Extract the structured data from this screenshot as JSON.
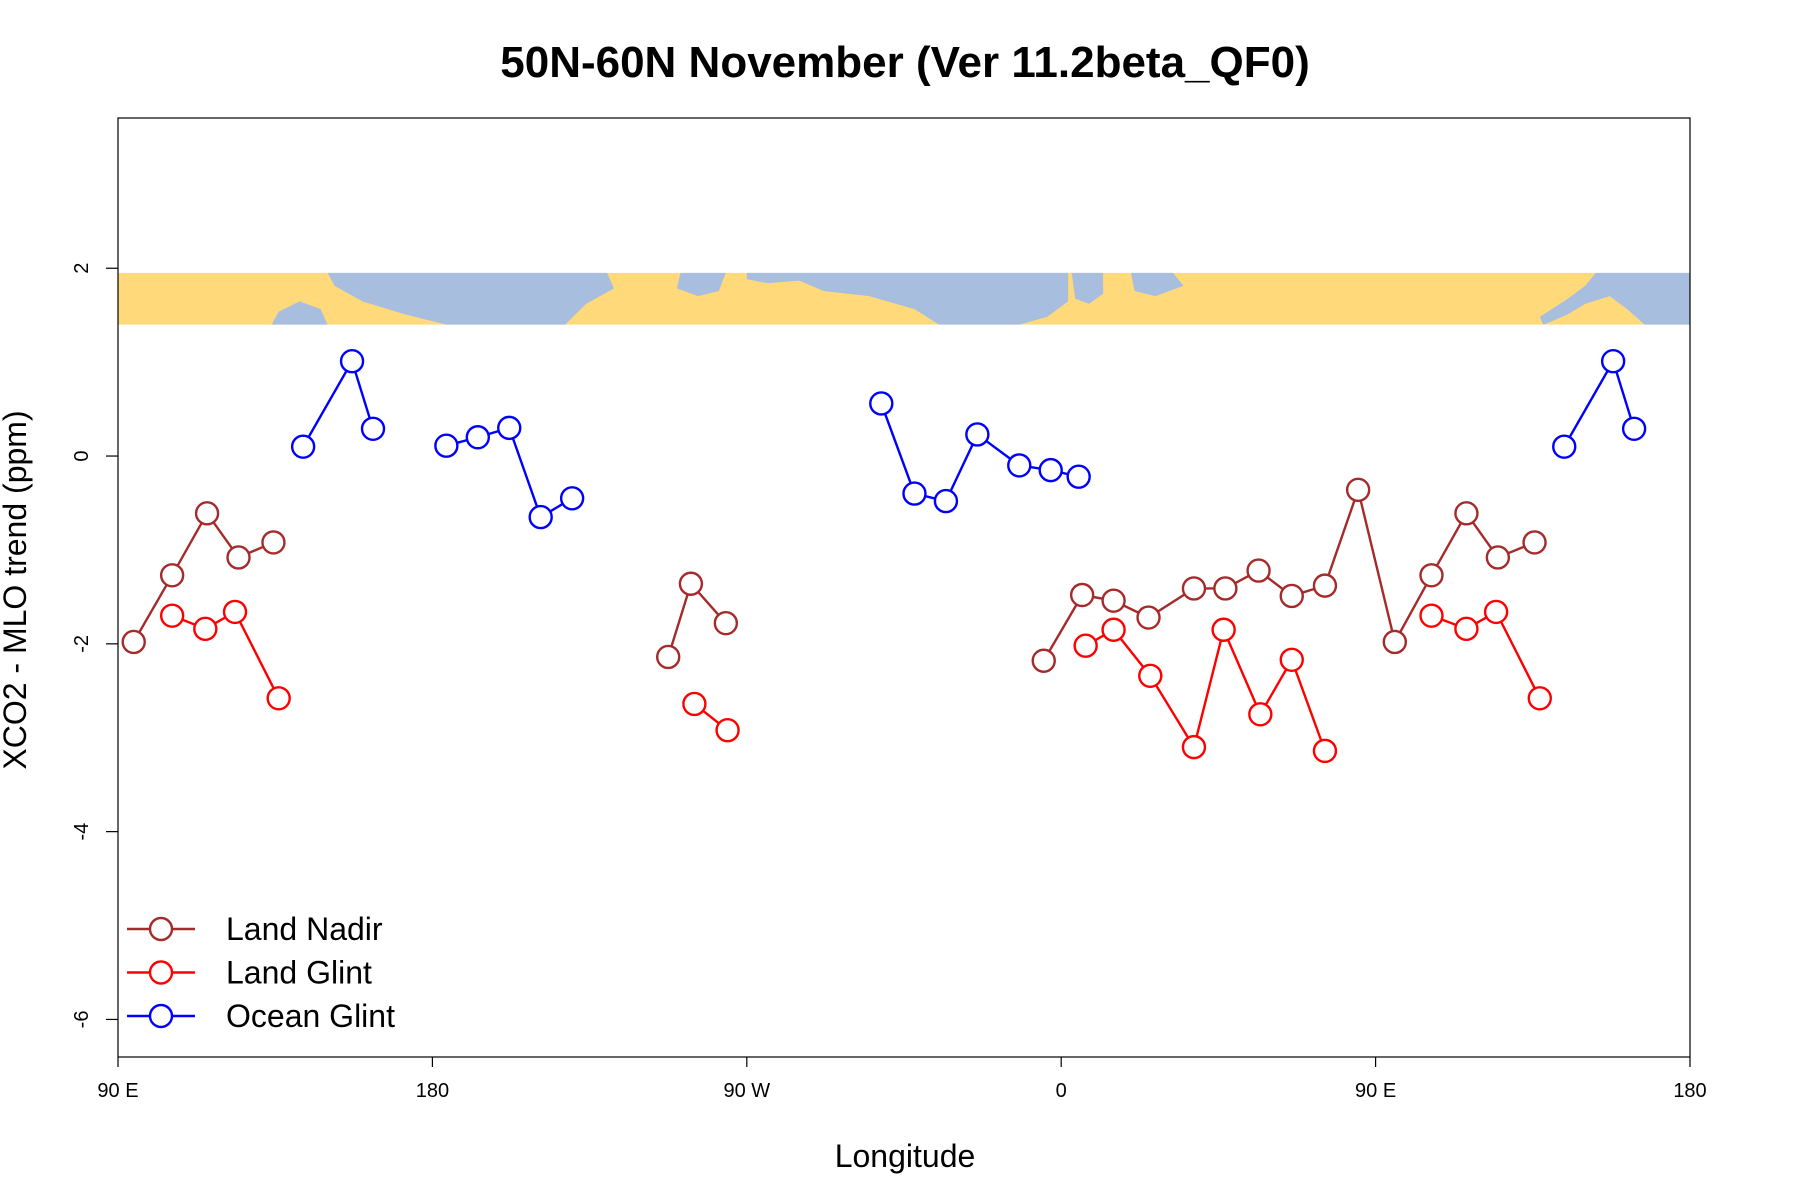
{
  "chart_data": {
    "type": "line",
    "title": "50N-60N November (Ver 11.2beta_QF0)",
    "xlabel": "Longitude",
    "ylabel": "XCO2 - MLO trend (ppm)",
    "xaxis": {
      "range_deg": [
        90,
        540
      ],
      "ticks": [
        {
          "value": 90,
          "label": "90 E"
        },
        {
          "value": 180,
          "label": "180"
        },
        {
          "value": 270,
          "label": "90 W"
        },
        {
          "value": 360,
          "label": "0"
        },
        {
          "value": 450,
          "label": "90 E"
        },
        {
          "value": 540,
          "label": "180"
        }
      ]
    },
    "yaxis": {
      "range": [
        -6.4,
        3.6
      ],
      "ticks": [
        {
          "value": 2,
          "label": "2"
        },
        {
          "value": 0,
          "label": "0"
        },
        {
          "value": -2,
          "label": "-2"
        },
        {
          "value": -4,
          "label": "-4"
        },
        {
          "value": -6,
          "label": "-6"
        }
      ]
    },
    "map_strip": {
      "y_range": [
        1.4,
        1.95
      ],
      "land_color": "#FFD97A",
      "ocean_color": "#A7BEDE"
    },
    "legend": {
      "position": "bottom-left"
    },
    "grid": false,
    "series": [
      {
        "name": "Land Nadir",
        "color": "#A52A2A",
        "segments": [
          [
            [
              94.5,
              -1.98
            ],
            [
              105.5,
              -1.27
            ],
            [
              115.5,
              -0.61
            ],
            [
              124.5,
              -1.08
            ],
            [
              134.5,
              -0.92
            ]
          ],
          [
            [
              247.5,
              -2.14
            ],
            [
              254,
              -1.36
            ],
            [
              264,
              -1.78
            ]
          ],
          [
            [
              355,
              -2.18
            ],
            [
              366,
              -1.48
            ],
            [
              375,
              -1.54
            ],
            [
              385,
              -1.72
            ],
            [
              398,
              -1.41
            ],
            [
              407,
              -1.41
            ],
            [
              416.5,
              -1.22
            ],
            [
              426,
              -1.49
            ],
            [
              435.5,
              -1.38
            ],
            [
              445,
              -0.36
            ],
            [
              455.5,
              -1.98
            ],
            [
              466,
              -1.27
            ],
            [
              476,
              -0.61
            ],
            [
              485,
              -1.08
            ],
            [
              495.5,
              -0.92
            ]
          ]
        ]
      },
      {
        "name": "Land Glint",
        "color": "#FF0000",
        "segments": [
          [
            [
              105.5,
              -1.7
            ],
            [
              115,
              -1.84
            ],
            [
              123.5,
              -1.66
            ],
            [
              136,
              -2.58
            ]
          ],
          [
            [
              255,
              -2.64
            ],
            [
              264.5,
              -2.92
            ]
          ],
          [
            [
              367,
              -2.02
            ],
            [
              375,
              -1.85
            ],
            [
              385.5,
              -2.34
            ],
            [
              398,
              -3.1
            ],
            [
              406.5,
              -1.85
            ],
            [
              417,
              -2.75
            ],
            [
              426,
              -2.17
            ],
            [
              435.5,
              -3.14
            ]
          ],
          [
            [
              466,
              -1.7
            ],
            [
              476,
              -1.84
            ],
            [
              484.5,
              -1.66
            ],
            [
              497,
              -2.58
            ]
          ]
        ]
      },
      {
        "name": "Ocean Glint",
        "color": "#0000FF",
        "segments": [
          [
            [
              143,
              0.1
            ],
            [
              157,
              1.01
            ],
            [
              163,
              0.29
            ]
          ],
          [
            [
              184,
              0.11
            ],
            [
              193,
              0.2
            ],
            [
              202,
              0.3
            ],
            [
              211,
              -0.65
            ],
            [
              220,
              -0.45
            ]
          ],
          [
            [
              308.5,
              0.56
            ],
            [
              318,
              -0.4
            ],
            [
              327,
              -0.48
            ],
            [
              336,
              0.23
            ],
            [
              348,
              -0.1
            ],
            [
              357,
              -0.15
            ],
            [
              365,
              -0.22
            ]
          ],
          [
            [
              504,
              0.1
            ],
            [
              518,
              1.01
            ],
            [
              524,
              0.29
            ]
          ]
        ]
      }
    ]
  }
}
